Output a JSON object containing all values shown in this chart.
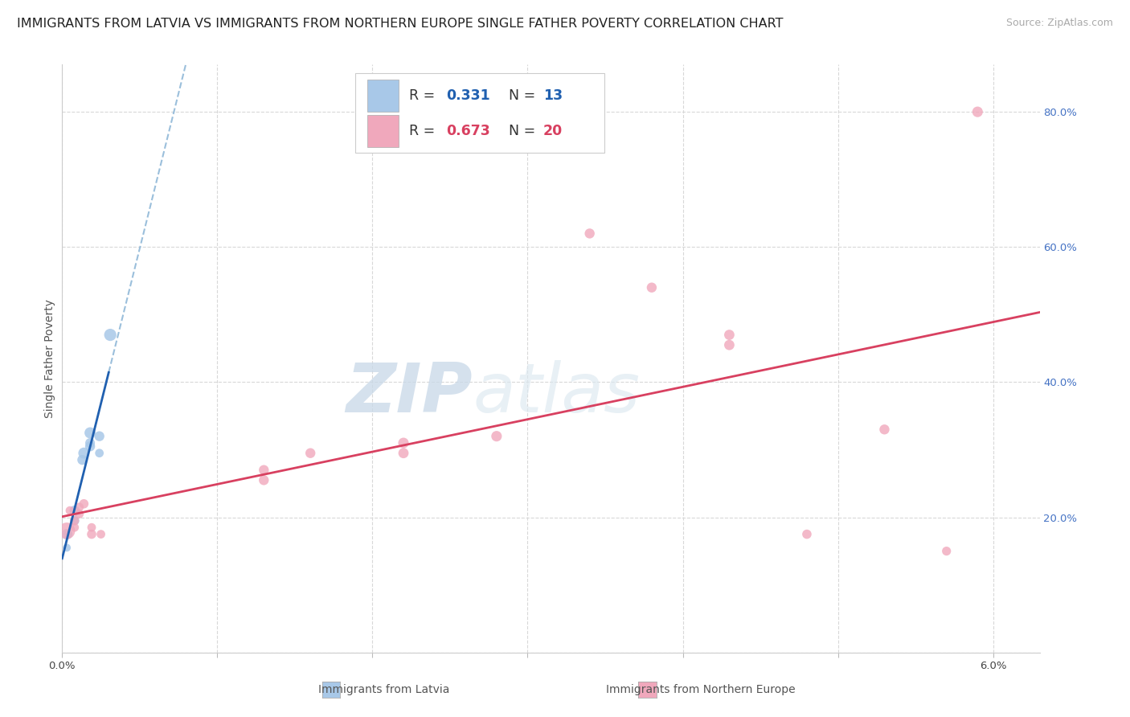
{
  "title": "IMMIGRANTS FROM LATVIA VS IMMIGRANTS FROM NORTHERN EUROPE SINGLE FATHER POVERTY CORRELATION CHART",
  "source": "Source: ZipAtlas.com",
  "ylabel": "Single Father Poverty",
  "x_label_left": "Immigrants from Latvia",
  "x_label_right": "Immigrants from Northern Europe",
  "xlim": [
    0.0,
    0.063
  ],
  "ylim": [
    0.05,
    0.87
  ],
  "latvia_color": "#a8c8e8",
  "latvia_line_color": "#2060b0",
  "northern_color": "#f0a8bc",
  "northern_line_color": "#d84060",
  "dashed_line_color": "#90b8d8",
  "background_color": "#ffffff",
  "grid_color": "#d8d8d8",
  "watermark_zip": "ZIP",
  "watermark_atlas": "atlas",
  "watermark_color": "#c8d8e8",
  "latvia_points": [
    [
      0.0003,
      0.175
    ],
    [
      0.0003,
      0.155
    ],
    [
      0.0004,
      0.175
    ],
    [
      0.0008,
      0.21
    ],
    [
      0.0008,
      0.195
    ],
    [
      0.0013,
      0.285
    ],
    [
      0.0014,
      0.295
    ],
    [
      0.0018,
      0.325
    ],
    [
      0.0018,
      0.305
    ],
    [
      0.0018,
      0.31
    ],
    [
      0.0024,
      0.32
    ],
    [
      0.0024,
      0.295
    ],
    [
      0.0031,
      0.47
    ]
  ],
  "latvia_sizes": [
    90,
    50,
    55,
    80,
    70,
    80,
    100,
    100,
    80,
    75,
    80,
    60,
    120
  ],
  "northern_points": [
    [
      0.0003,
      0.18
    ],
    [
      0.0005,
      0.21
    ],
    [
      0.0008,
      0.195
    ],
    [
      0.0008,
      0.185
    ],
    [
      0.0011,
      0.205
    ],
    [
      0.0011,
      0.215
    ],
    [
      0.0014,
      0.22
    ],
    [
      0.0019,
      0.175
    ],
    [
      0.0019,
      0.185
    ],
    [
      0.0025,
      0.175
    ],
    [
      0.013,
      0.255
    ],
    [
      0.013,
      0.27
    ],
    [
      0.016,
      0.295
    ],
    [
      0.022,
      0.295
    ],
    [
      0.022,
      0.31
    ],
    [
      0.028,
      0.32
    ],
    [
      0.034,
      0.62
    ],
    [
      0.038,
      0.54
    ],
    [
      0.043,
      0.455
    ],
    [
      0.043,
      0.47
    ],
    [
      0.048,
      0.175
    ],
    [
      0.053,
      0.33
    ],
    [
      0.057,
      0.15
    ],
    [
      0.059,
      0.8
    ]
  ],
  "northern_sizes": [
    220,
    60,
    65,
    60,
    65,
    65,
    70,
    70,
    60,
    60,
    80,
    80,
    80,
    85,
    90,
    90,
    80,
    80,
    85,
    85,
    70,
    80,
    65,
    90
  ],
  "title_fontsize": 11.5,
  "axis_label_fontsize": 10,
  "tick_fontsize": 9.5,
  "source_fontsize": 9
}
